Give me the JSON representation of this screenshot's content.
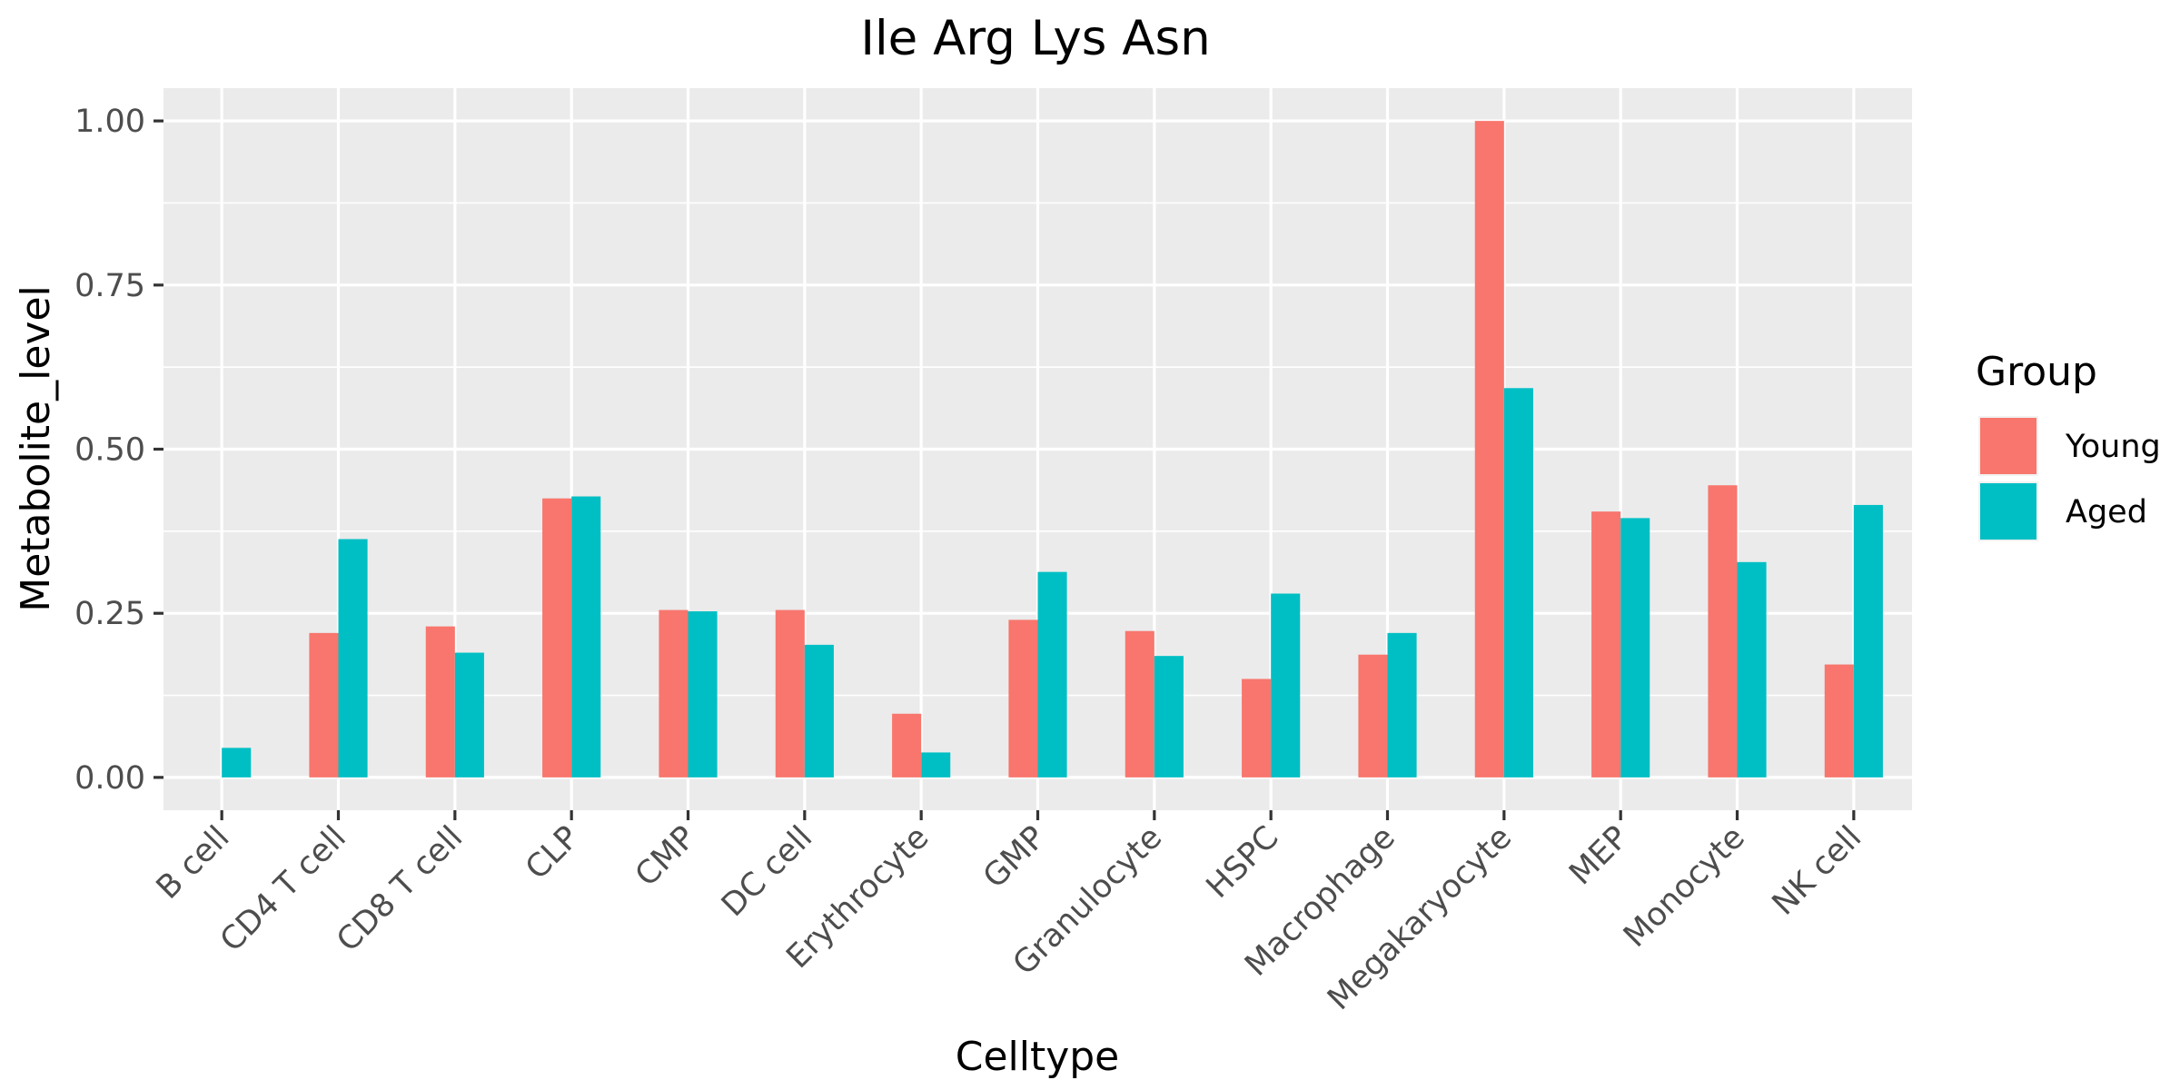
{
  "chart_data": {
    "type": "bar",
    "title": "Ile Arg Lys Asn",
    "xlabel": "Celltype",
    "ylabel": "Metabolite_level",
    "ylim": [
      -0.05,
      1.05
    ],
    "yticks": [
      0.0,
      0.25,
      0.5,
      0.75,
      1.0
    ],
    "ytick_labels": [
      "0.00",
      "0.25",
      "0.50",
      "0.75",
      "1.00"
    ],
    "categories": [
      "B cell",
      "CD4 T cell",
      "CD8 T cell",
      "CLP",
      "CMP",
      "DC cell",
      "Erythrocyte",
      "GMP",
      "Granulocyte",
      "HSPC",
      "Macrophage",
      "Megakaryocyte",
      "MEP",
      "Monocyte",
      "NK cell"
    ],
    "series": [
      {
        "name": "Young",
        "color": "#f8766d",
        "values": [
          null,
          0.22,
          0.23,
          0.425,
          0.255,
          0.255,
          0.097,
          0.24,
          0.223,
          0.15,
          0.187,
          1.0,
          0.405,
          0.445,
          0.172
        ]
      },
      {
        "name": "Aged",
        "color": "#00bfc4",
        "values": [
          0.045,
          0.363,
          0.19,
          0.428,
          0.253,
          0.202,
          0.038,
          0.313,
          0.185,
          0.28,
          0.22,
          0.593,
          0.395,
          0.328,
          0.415
        ]
      }
    ],
    "legend": {
      "title": "Group",
      "position": "right"
    },
    "grid": true,
    "panel_background": "#ebebeb",
    "grid_color": "#ffffff"
  }
}
